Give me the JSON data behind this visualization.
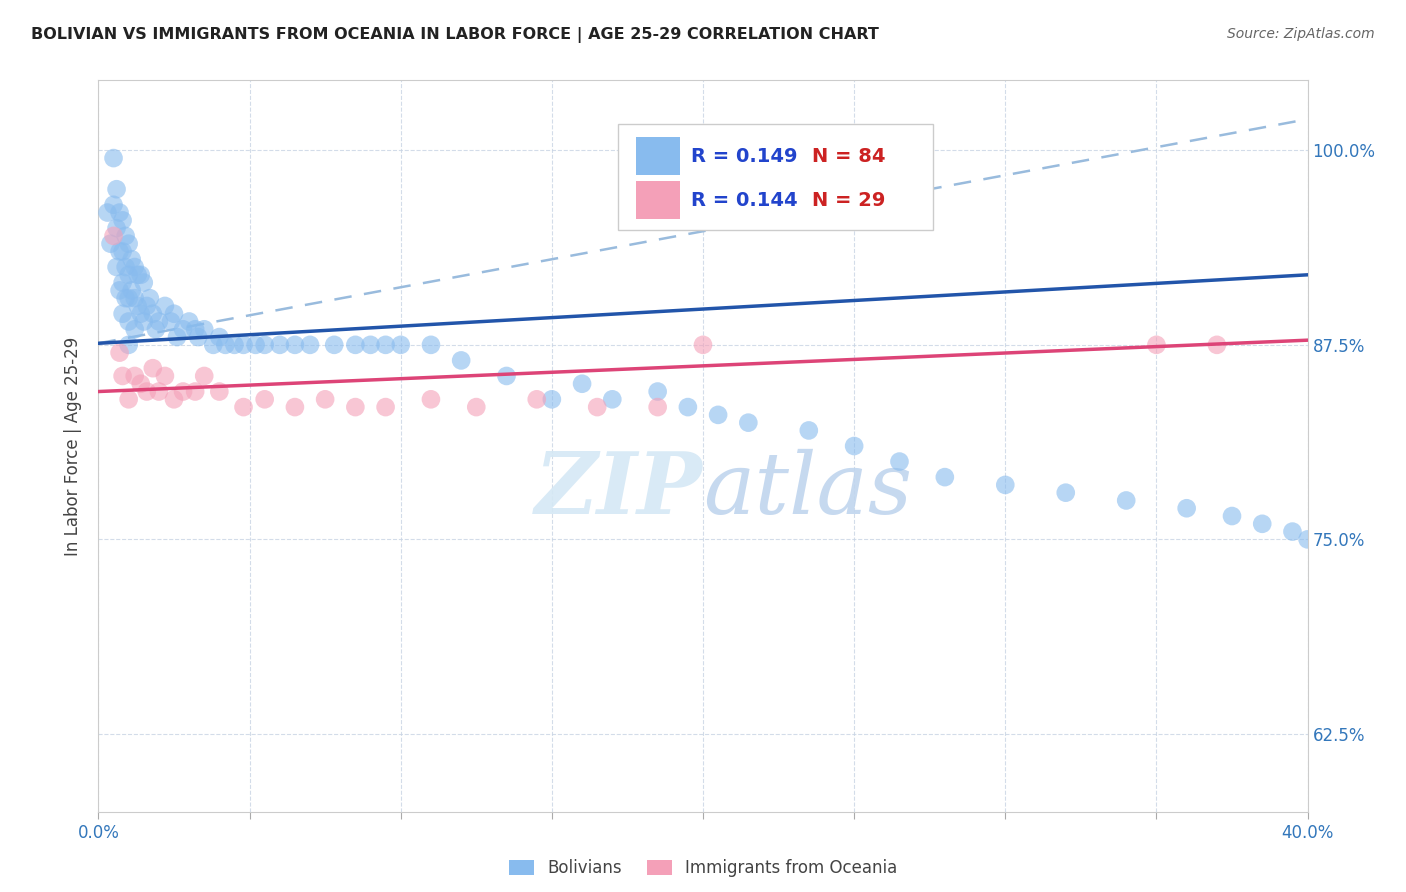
{
  "title": "BOLIVIAN VS IMMIGRANTS FROM OCEANIA IN LABOR FORCE | AGE 25-29 CORRELATION CHART",
  "source": "Source: ZipAtlas.com",
  "ylabel": "In Labor Force | Age 25-29",
  "xlim": [
    0.0,
    0.4
  ],
  "ylim": [
    0.575,
    1.045
  ],
  "yticks": [
    0.625,
    0.75,
    0.875,
    1.0
  ],
  "ytick_labels": [
    "62.5%",
    "75.0%",
    "87.5%",
    "100.0%"
  ],
  "xticks": [
    0.0,
    0.05,
    0.1,
    0.15,
    0.2,
    0.25,
    0.3,
    0.35,
    0.4
  ],
  "xtick_labels": [
    "0.0%",
    "",
    "",
    "",
    "",
    "",
    "",
    "",
    "40.0%"
  ],
  "blue_R": 0.149,
  "blue_N": 84,
  "pink_R": 0.144,
  "pink_N": 29,
  "blue_color": "#88BBEE",
  "pink_color": "#F4A0B8",
  "blue_line_color": "#2255AA",
  "pink_line_color": "#DD4477",
  "dashed_line_color": "#99BBDD",
  "legend_R_color": "#2244CC",
  "legend_N_color": "#CC2222",
  "watermark_color": "#D5E8F5",
  "blue_scatter_x": [
    0.003,
    0.004,
    0.005,
    0.005,
    0.006,
    0.006,
    0.006,
    0.007,
    0.007,
    0.007,
    0.008,
    0.008,
    0.008,
    0.008,
    0.009,
    0.009,
    0.009,
    0.01,
    0.01,
    0.01,
    0.01,
    0.01,
    0.011,
    0.011,
    0.012,
    0.012,
    0.012,
    0.013,
    0.013,
    0.014,
    0.014,
    0.015,
    0.015,
    0.016,
    0.017,
    0.018,
    0.019,
    0.02,
    0.022,
    0.024,
    0.025,
    0.026,
    0.028,
    0.03,
    0.032,
    0.033,
    0.035,
    0.038,
    0.04,
    0.042,
    0.045,
    0.048,
    0.052,
    0.055,
    0.06,
    0.065,
    0.07,
    0.078,
    0.085,
    0.09,
    0.095,
    0.1,
    0.11,
    0.12,
    0.135,
    0.15,
    0.16,
    0.17,
    0.185,
    0.195,
    0.205,
    0.215,
    0.235,
    0.25,
    0.265,
    0.28,
    0.3,
    0.32,
    0.34,
    0.36,
    0.375,
    0.385,
    0.395,
    0.4
  ],
  "blue_scatter_y": [
    0.96,
    0.94,
    0.995,
    0.965,
    0.975,
    0.95,
    0.925,
    0.96,
    0.935,
    0.91,
    0.955,
    0.935,
    0.915,
    0.895,
    0.945,
    0.925,
    0.905,
    0.94,
    0.92,
    0.905,
    0.89,
    0.875,
    0.93,
    0.91,
    0.925,
    0.905,
    0.885,
    0.92,
    0.9,
    0.92,
    0.895,
    0.915,
    0.89,
    0.9,
    0.905,
    0.895,
    0.885,
    0.89,
    0.9,
    0.89,
    0.895,
    0.88,
    0.885,
    0.89,
    0.885,
    0.88,
    0.885,
    0.875,
    0.88,
    0.875,
    0.875,
    0.875,
    0.875,
    0.875,
    0.875,
    0.875,
    0.875,
    0.875,
    0.875,
    0.875,
    0.875,
    0.875,
    0.875,
    0.865,
    0.855,
    0.84,
    0.85,
    0.84,
    0.845,
    0.835,
    0.83,
    0.825,
    0.82,
    0.81,
    0.8,
    0.79,
    0.785,
    0.78,
    0.775,
    0.77,
    0.765,
    0.76,
    0.755,
    0.75
  ],
  "pink_scatter_x": [
    0.005,
    0.007,
    0.008,
    0.01,
    0.012,
    0.014,
    0.016,
    0.018,
    0.02,
    0.022,
    0.025,
    0.028,
    0.032,
    0.035,
    0.04,
    0.048,
    0.055,
    0.065,
    0.075,
    0.085,
    0.095,
    0.11,
    0.125,
    0.145,
    0.165,
    0.185,
    0.2,
    0.35,
    0.37
  ],
  "pink_scatter_y": [
    0.945,
    0.87,
    0.855,
    0.84,
    0.855,
    0.85,
    0.845,
    0.86,
    0.845,
    0.855,
    0.84,
    0.845,
    0.845,
    0.855,
    0.845,
    0.835,
    0.84,
    0.835,
    0.84,
    0.835,
    0.835,
    0.84,
    0.835,
    0.84,
    0.835,
    0.835,
    0.875,
    0.875,
    0.875
  ],
  "blue_line_x0": 0.0,
  "blue_line_x1": 0.4,
  "blue_line_y0": 0.876,
  "blue_line_y1": 0.92,
  "pink_line_x0": 0.0,
  "pink_line_x1": 0.4,
  "pink_line_y0": 0.845,
  "pink_line_y1": 0.878,
  "dashed_line_x0": 0.0,
  "dashed_line_x1": 0.4,
  "dashed_line_y0": 0.876,
  "dashed_line_y1": 1.02
}
